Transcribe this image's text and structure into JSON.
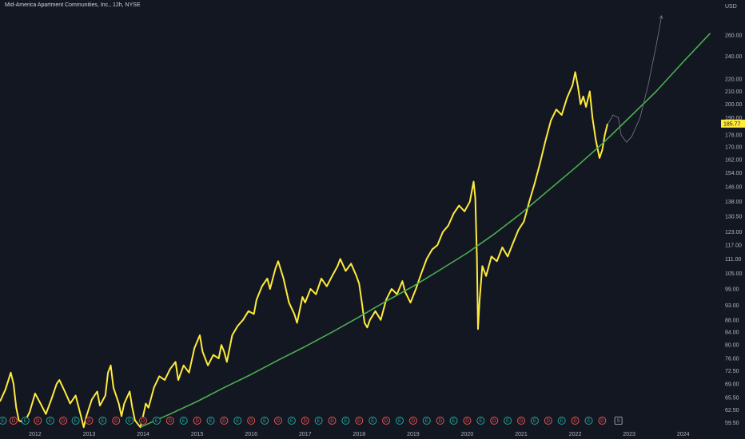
{
  "header": {
    "title": "Mid-America Apartment Communities, Inc., 12h, NYSE"
  },
  "chart_data": {
    "type": "line",
    "title": "Mid-America Apartment Communities, Inc., 12h, NYSE",
    "y_unit": "USD",
    "y_scale": "log",
    "ylim": [
      58,
      285
    ],
    "xlim": [
      2011.35,
      2024.7
    ],
    "grid": false,
    "y_ticks": [
      59.5,
      62.5,
      65.5,
      69,
      72.5,
      76,
      80,
      84,
      88,
      93,
      99,
      105,
      111,
      117,
      123,
      130.5,
      138,
      146,
      154,
      162,
      170,
      178,
      190,
      200,
      210,
      220,
      240,
      260
    ],
    "y_tick_labels": [
      "59.50",
      "62.50",
      "65.50",
      "69.00",
      "72.50",
      "76.00",
      "80.00",
      "84.00",
      "88.00",
      "93.00",
      "99.00",
      "105.00",
      "111.00",
      "117.00",
      "123.00",
      "130.50",
      "138.00",
      "146.00",
      "154.00",
      "162.00",
      "170.00",
      "178.00",
      "190.00",
      "200.00",
      "210.00",
      "220.00",
      "240.00",
      "260.00"
    ],
    "x_ticks": [
      "2012",
      "2013",
      "2014",
      "2015",
      "2016",
      "2017",
      "2018",
      "2019",
      "2020",
      "2021",
      "2022",
      "2023",
      "2024"
    ],
    "last_price": {
      "value": 185.77,
      "label": "185.77",
      "color": "#ffeb3b"
    },
    "series": [
      {
        "type": "price",
        "color": "#ffeb3b",
        "points": [
          [
            2011.35,
            64.5
          ],
          [
            2011.45,
            67.5
          ],
          [
            2011.55,
            72
          ],
          [
            2011.6,
            69
          ],
          [
            2011.65,
            63
          ],
          [
            2011.7,
            60
          ],
          [
            2011.8,
            59.5
          ],
          [
            2011.9,
            62
          ],
          [
            2012.0,
            66.5
          ],
          [
            2012.1,
            64
          ],
          [
            2012.2,
            61.5
          ],
          [
            2012.3,
            65
          ],
          [
            2012.4,
            69
          ],
          [
            2012.45,
            70
          ],
          [
            2012.55,
            67
          ],
          [
            2012.65,
            64
          ],
          [
            2012.75,
            66
          ],
          [
            2012.85,
            61
          ],
          [
            2012.9,
            58.5
          ],
          [
            2012.95,
            61
          ],
          [
            2013.05,
            65
          ],
          [
            2013.15,
            67
          ],
          [
            2013.2,
            63.5
          ],
          [
            2013.3,
            66
          ],
          [
            2013.35,
            72
          ],
          [
            2013.4,
            74
          ],
          [
            2013.45,
            68
          ],
          [
            2013.55,
            64
          ],
          [
            2013.6,
            61
          ],
          [
            2013.65,
            64
          ],
          [
            2013.75,
            67
          ],
          [
            2013.8,
            63
          ],
          [
            2013.85,
            60
          ],
          [
            2013.95,
            58.5
          ],
          [
            2014.0,
            61
          ],
          [
            2014.05,
            64
          ],
          [
            2014.1,
            63
          ],
          [
            2014.2,
            68
          ],
          [
            2014.3,
            71
          ],
          [
            2014.4,
            70
          ],
          [
            2014.5,
            73
          ],
          [
            2014.6,
            75
          ],
          [
            2014.65,
            70
          ],
          [
            2014.75,
            74
          ],
          [
            2014.85,
            72
          ],
          [
            2014.95,
            79
          ],
          [
            2015.05,
            83
          ],
          [
            2015.1,
            78
          ],
          [
            2015.2,
            74
          ],
          [
            2015.3,
            77
          ],
          [
            2015.4,
            76
          ],
          [
            2015.45,
            80
          ],
          [
            2015.5,
            78
          ],
          [
            2015.55,
            75
          ],
          [
            2015.65,
            83
          ],
          [
            2015.75,
            86
          ],
          [
            2015.85,
            88
          ],
          [
            2015.95,
            91
          ],
          [
            2016.05,
            90
          ],
          [
            2016.1,
            95
          ],
          [
            2016.2,
            100
          ],
          [
            2016.3,
            103
          ],
          [
            2016.35,
            99
          ],
          [
            2016.45,
            107
          ],
          [
            2016.5,
            110
          ],
          [
            2016.6,
            103
          ],
          [
            2016.7,
            94
          ],
          [
            2016.8,
            90
          ],
          [
            2016.85,
            87
          ],
          [
            2016.95,
            96
          ],
          [
            2017.0,
            94
          ],
          [
            2017.1,
            99
          ],
          [
            2017.2,
            97
          ],
          [
            2017.3,
            103
          ],
          [
            2017.4,
            100
          ],
          [
            2017.5,
            104
          ],
          [
            2017.6,
            108
          ],
          [
            2017.65,
            111
          ],
          [
            2017.75,
            106
          ],
          [
            2017.85,
            109
          ],
          [
            2017.95,
            104
          ],
          [
            2018.0,
            101
          ],
          [
            2018.05,
            94
          ],
          [
            2018.1,
            87
          ],
          [
            2018.15,
            85.5
          ],
          [
            2018.2,
            88
          ],
          [
            2018.3,
            91
          ],
          [
            2018.4,
            88
          ],
          [
            2018.5,
            95
          ],
          [
            2018.6,
            99
          ],
          [
            2018.7,
            97
          ],
          [
            2018.8,
            102
          ],
          [
            2018.85,
            98
          ],
          [
            2018.95,
            94
          ],
          [
            2019.05,
            99
          ],
          [
            2019.15,
            105
          ],
          [
            2019.25,
            111
          ],
          [
            2019.35,
            115
          ],
          [
            2019.45,
            117
          ],
          [
            2019.55,
            123
          ],
          [
            2019.65,
            126
          ],
          [
            2019.75,
            132
          ],
          [
            2019.85,
            136
          ],
          [
            2019.95,
            133
          ],
          [
            2020.05,
            138
          ],
          [
            2020.12,
            149
          ],
          [
            2020.15,
            140
          ],
          [
            2020.18,
            112
          ],
          [
            2020.2,
            85
          ],
          [
            2020.23,
            95
          ],
          [
            2020.28,
            108
          ],
          [
            2020.35,
            104
          ],
          [
            2020.45,
            112
          ],
          [
            2020.55,
            110
          ],
          [
            2020.65,
            116
          ],
          [
            2020.75,
            112
          ],
          [
            2020.85,
            118
          ],
          [
            2020.95,
            124
          ],
          [
            2021.05,
            128
          ],
          [
            2021.15,
            138
          ],
          [
            2021.25,
            148
          ],
          [
            2021.35,
            160
          ],
          [
            2021.45,
            174
          ],
          [
            2021.55,
            188
          ],
          [
            2021.65,
            196
          ],
          [
            2021.75,
            192
          ],
          [
            2021.85,
            205
          ],
          [
            2021.95,
            215
          ],
          [
            2022.0,
            226
          ],
          [
            2022.05,
            214
          ],
          [
            2022.1,
            200
          ],
          [
            2022.15,
            206
          ],
          [
            2022.2,
            198
          ],
          [
            2022.27,
            210
          ],
          [
            2022.32,
            190
          ],
          [
            2022.38,
            175
          ],
          [
            2022.45,
            163
          ],
          [
            2022.5,
            168
          ],
          [
            2022.55,
            178
          ],
          [
            2022.6,
            185.77
          ]
        ]
      },
      {
        "type": "trend",
        "color": "#4caf50",
        "points": [
          [
            2013.95,
            58.5
          ],
          [
            2014.5,
            61.5
          ],
          [
            2015.0,
            64.5
          ],
          [
            2015.5,
            68
          ],
          [
            2016.0,
            71.5
          ],
          [
            2016.5,
            75.5
          ],
          [
            2017.0,
            79.5
          ],
          [
            2017.5,
            84
          ],
          [
            2018.0,
            89
          ],
          [
            2018.5,
            94.5
          ],
          [
            2019.0,
            100
          ],
          [
            2019.5,
            106.5
          ],
          [
            2020.0,
            113.5
          ],
          [
            2020.5,
            122
          ],
          [
            2021.0,
            132
          ],
          [
            2021.5,
            144
          ],
          [
            2022.0,
            157
          ],
          [
            2022.5,
            172
          ],
          [
            2023.0,
            190
          ],
          [
            2023.5,
            210
          ],
          [
            2024.0,
            235
          ],
          [
            2024.5,
            262
          ]
        ]
      },
      {
        "type": "projection",
        "color": "#787b86",
        "points": [
          [
            2022.6,
            185
          ],
          [
            2022.7,
            192
          ],
          [
            2022.8,
            190
          ],
          [
            2022.85,
            178
          ],
          [
            2022.95,
            173
          ],
          [
            2023.05,
            177
          ],
          [
            2023.2,
            190
          ],
          [
            2023.35,
            215
          ],
          [
            2023.5,
            250
          ],
          [
            2023.6,
            280
          ]
        ]
      }
    ],
    "event_markers": [
      {
        "kind": "E",
        "x": 2011.4
      },
      {
        "kind": "D",
        "x": 2011.6
      },
      {
        "kind": "E",
        "x": 2011.82
      },
      {
        "kind": "D",
        "x": 2012.05
      },
      {
        "kind": "E",
        "x": 2012.28
      },
      {
        "kind": "D",
        "x": 2012.52
      },
      {
        "kind": "E",
        "x": 2012.75
      },
      {
        "kind": "D",
        "x": 2013.0
      },
      {
        "kind": "E",
        "x": 2013.25
      },
      {
        "kind": "D",
        "x": 2013.5
      },
      {
        "kind": "E",
        "x": 2013.75
      },
      {
        "kind": "D",
        "x": 2014.0
      },
      {
        "kind": "E",
        "x": 2014.25
      },
      {
        "kind": "D",
        "x": 2014.5
      },
      {
        "kind": "E",
        "x": 2014.75
      },
      {
        "kind": "D",
        "x": 2015.0
      },
      {
        "kind": "E",
        "x": 2015.25
      },
      {
        "kind": "D",
        "x": 2015.5
      },
      {
        "kind": "E",
        "x": 2015.75
      },
      {
        "kind": "D",
        "x": 2016.0
      },
      {
        "kind": "E",
        "x": 2016.25
      },
      {
        "kind": "D",
        "x": 2016.5
      },
      {
        "kind": "E",
        "x": 2016.75
      },
      {
        "kind": "D",
        "x": 2017.0
      },
      {
        "kind": "E",
        "x": 2017.25
      },
      {
        "kind": "D",
        "x": 2017.5
      },
      {
        "kind": "E",
        "x": 2017.75
      },
      {
        "kind": "D",
        "x": 2018.0
      },
      {
        "kind": "E",
        "x": 2018.25
      },
      {
        "kind": "D",
        "x": 2018.5
      },
      {
        "kind": "E",
        "x": 2018.75
      },
      {
        "kind": "D",
        "x": 2019.0
      },
      {
        "kind": "E",
        "x": 2019.25
      },
      {
        "kind": "D",
        "x": 2019.5
      },
      {
        "kind": "E",
        "x": 2019.75
      },
      {
        "kind": "D",
        "x": 2020.0
      },
      {
        "kind": "E",
        "x": 2020.25
      },
      {
        "kind": "D",
        "x": 2020.5
      },
      {
        "kind": "E",
        "x": 2020.75
      },
      {
        "kind": "D",
        "x": 2021.0
      },
      {
        "kind": "E",
        "x": 2021.25
      },
      {
        "kind": "D",
        "x": 2021.5
      },
      {
        "kind": "E",
        "x": 2021.75
      },
      {
        "kind": "D",
        "x": 2022.0
      },
      {
        "kind": "E",
        "x": 2022.25
      },
      {
        "kind": "D",
        "x": 2022.5
      },
      {
        "kind": "S",
        "x": 2022.8
      }
    ],
    "colors": {
      "background": "#131722",
      "price": "#ffeb3b",
      "trend": "#4caf50",
      "projection": "#787b86",
      "earnings": "#26a69a",
      "dividend": "#ef5350",
      "split": "#9598a1",
      "axis_text": "#b2b5be"
    }
  }
}
